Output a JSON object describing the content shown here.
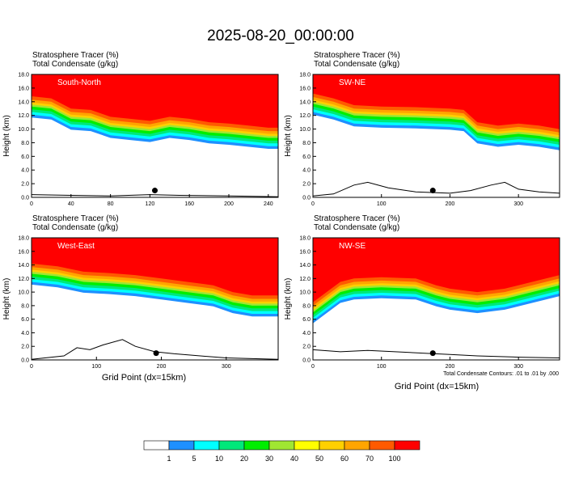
{
  "title": "2025-08-20_00:00:00",
  "footnote": "Total Condensate Contours: .01 to .01 by .000",
  "colorbar": {
    "colors": [
      "#ffffff",
      "#1e90ff",
      "#00ffff",
      "#00e87a",
      "#00ee00",
      "#a0e632",
      "#ffff00",
      "#ffd000",
      "#ffa500",
      "#ff5a00",
      "#ff0000"
    ],
    "labels": [
      "1",
      "5",
      "10",
      "20",
      "30",
      "40",
      "50",
      "60",
      "70",
      "100"
    ]
  },
  "chart_data": [
    {
      "type": "heatmap",
      "panel_label": "South-North",
      "header_line1": "Stratosphere Tracer    (%)",
      "header_line2": "Total Condensate    (g/kg)",
      "xlabel": "",
      "ylabel": "Height (km)",
      "xlim": [
        0,
        250
      ],
      "ylim": [
        0,
        18
      ],
      "xticks": [
        "0",
        "40",
        "80",
        "120",
        "160",
        "200",
        "240"
      ],
      "yticks": [
        "0.0",
        "2.0",
        "4.0",
        "6.0",
        "8.0",
        "10.0",
        "12.0",
        "14.0",
        "16.0",
        "18.0"
      ],
      "tracer_base_km": [
        [
          0,
          14.8
        ],
        [
          20,
          14.5
        ],
        [
          40,
          13.0
        ],
        [
          60,
          12.8
        ],
        [
          80,
          11.8
        ],
        [
          100,
          11.5
        ],
        [
          120,
          11.2
        ],
        [
          140,
          11.8
        ],
        [
          160,
          11.5
        ],
        [
          180,
          11.0
        ],
        [
          200,
          10.8
        ],
        [
          220,
          10.5
        ],
        [
          240,
          10.2
        ],
        [
          250,
          10.2
        ]
      ],
      "terrain_km": [
        [
          0,
          0.4
        ],
        [
          40,
          0.3
        ],
        [
          80,
          0.2
        ],
        [
          120,
          0.4
        ],
        [
          150,
          0.3
        ],
        [
          200,
          0.2
        ],
        [
          250,
          0.1
        ]
      ],
      "marker_x": 125
    },
    {
      "type": "heatmap",
      "panel_label": "SW-NE",
      "header_line1": "Stratosphere Tracer    (%)",
      "header_line2": "Total Condensate    (g/kg)",
      "xlabel": "",
      "ylabel": "Height (km)",
      "xlim": [
        0,
        360
      ],
      "ylim": [
        0,
        18
      ],
      "xticks": [
        "0",
        "100",
        "200",
        "300"
      ],
      "yticks": [
        "0.0",
        "2.0",
        "4.0",
        "6.0",
        "8.0",
        "10.0",
        "12.0",
        "14.0",
        "16.0",
        "18.0"
      ],
      "tracer_base_km": [
        [
          0,
          15.2
        ],
        [
          30,
          14.5
        ],
        [
          60,
          13.5
        ],
        [
          100,
          13.3
        ],
        [
          150,
          13.2
        ],
        [
          200,
          13.0
        ],
        [
          220,
          12.8
        ],
        [
          240,
          11.0
        ],
        [
          270,
          10.5
        ],
        [
          300,
          10.8
        ],
        [
          330,
          10.5
        ],
        [
          360,
          10.0
        ]
      ],
      "terrain_km": [
        [
          0,
          0.2
        ],
        [
          30,
          0.5
        ],
        [
          60,
          1.8
        ],
        [
          80,
          2.2
        ],
        [
          110,
          1.4
        ],
        [
          150,
          0.8
        ],
        [
          200,
          0.6
        ],
        [
          230,
          1.0
        ],
        [
          260,
          1.8
        ],
        [
          280,
          2.2
        ],
        [
          300,
          1.2
        ],
        [
          330,
          0.8
        ],
        [
          360,
          0.6
        ]
      ],
      "marker_x": 175
    },
    {
      "type": "heatmap",
      "panel_label": "West-East",
      "header_line1": "Stratosphere Tracer    (%)",
      "header_line2": "Total Condensate    (g/kg)",
      "xlabel": "Grid Point (dx=15km)",
      "ylabel": "Height (km)",
      "xlim": [
        0,
        380
      ],
      "ylim": [
        0,
        18
      ],
      "xticks": [
        "0",
        "100",
        "200",
        "300"
      ],
      "yticks": [
        "0.0",
        "2.0",
        "4.0",
        "6.0",
        "8.0",
        "10.0",
        "12.0",
        "14.0",
        "16.0",
        "18.0"
      ],
      "tracer_base_km": [
        [
          0,
          14.2
        ],
        [
          40,
          13.8
        ],
        [
          80,
          13.0
        ],
        [
          120,
          12.8
        ],
        [
          160,
          12.5
        ],
        [
          200,
          12.0
        ],
        [
          240,
          11.5
        ],
        [
          280,
          11.0
        ],
        [
          310,
          10.0
        ],
        [
          340,
          9.5
        ],
        [
          380,
          9.5
        ]
      ],
      "terrain_km": [
        [
          0,
          0.1
        ],
        [
          50,
          0.6
        ],
        [
          70,
          1.8
        ],
        [
          90,
          1.5
        ],
        [
          110,
          2.2
        ],
        [
          140,
          3.0
        ],
        [
          160,
          2.0
        ],
        [
          190,
          1.2
        ],
        [
          220,
          0.9
        ],
        [
          260,
          0.6
        ],
        [
          300,
          0.3
        ],
        [
          380,
          0.1
        ]
      ],
      "marker_x": 192
    },
    {
      "type": "heatmap",
      "panel_label": "NW-SE",
      "header_line1": "Stratosphere Tracer    (%)",
      "header_line2": "Total Condensate    (g/kg)",
      "xlabel": "Grid Point (dx=15km)",
      "ylabel": "Height (km)",
      "xlim": [
        0,
        360
      ],
      "ylim": [
        0,
        18
      ],
      "xticks": [
        "0",
        "100",
        "200",
        "300"
      ],
      "yticks": [
        "0.0",
        "2.0",
        "4.0",
        "6.0",
        "8.0",
        "10.0",
        "12.0",
        "14.0",
        "16.0",
        "18.0"
      ],
      "tracer_base_km": [
        [
          0,
          8.5
        ],
        [
          20,
          10.0
        ],
        [
          40,
          11.5
        ],
        [
          60,
          12.0
        ],
        [
          100,
          12.2
        ],
        [
          150,
          12.0
        ],
        [
          180,
          11.0
        ],
        [
          200,
          10.5
        ],
        [
          240,
          10.0
        ],
        [
          280,
          10.5
        ],
        [
          320,
          11.5
        ],
        [
          360,
          12.5
        ]
      ],
      "terrain_km": [
        [
          0,
          1.5
        ],
        [
          40,
          1.2
        ],
        [
          80,
          1.4
        ],
        [
          120,
          1.2
        ],
        [
          160,
          1.0
        ],
        [
          200,
          0.8
        ],
        [
          240,
          0.6
        ],
        [
          300,
          0.4
        ],
        [
          360,
          0.3
        ]
      ],
      "marker_x": 175
    }
  ]
}
